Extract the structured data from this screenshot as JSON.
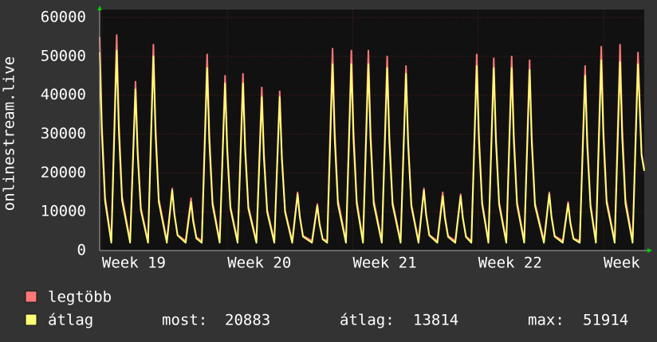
{
  "chart_data": {
    "type": "line",
    "ylabel": "onlinestream.live",
    "x": [
      0,
      0.12,
      0.3,
      0.65,
      0.95,
      1.07,
      1.25,
      1.7,
      2.0,
      2.12,
      2.3,
      2.7,
      3.0,
      3.12,
      3.3,
      3.75,
      4.05,
      4.17,
      4.35,
      4.8,
      5.1,
      5.22,
      5.4,
      5.7,
      6.0,
      6.12,
      6.3,
      6.7,
      7.0,
      7.12,
      7.3,
      7.7,
      8.0,
      8.12,
      8.3,
      8.75,
      9.05,
      9.17,
      9.35,
      9.75,
      10.05,
      10.17,
      10.35,
      10.75,
      11.05,
      11.17,
      11.35,
      11.85,
      12.15,
      12.27,
      12.45,
      12.7,
      13.0,
      13.12,
      13.3,
      13.75,
      14.05,
      14.17,
      14.35,
      14.7,
      15.0,
      15.12,
      15.3,
      15.75,
      16.05,
      16.17,
      16.35,
      16.8,
      17.1,
      17.22,
      17.4,
      17.8,
      18.1,
      18.22,
      18.4,
      18.85,
      19.15,
      19.27,
      19.45,
      19.85,
      20.15,
      20.27,
      20.45,
      20.75,
      21.05,
      21.17,
      21.35,
      21.7,
      22.0,
      22.12,
      22.3,
      22.7,
      23.0,
      23.12,
      23.3,
      23.7,
      24.0,
      24.12,
      24.3,
      24.8,
      25.1,
      25.22,
      25.4,
      25.85,
      26.15,
      26.27,
      26.45,
      26.8,
      27.1,
      27.22,
      27.4,
      27.7,
      28.0,
      28.12,
      28.3,
      28.75,
      29.05,
      29.17,
      29.35,
      29.75,
      30.05,
      30.25,
      30.4
    ],
    "series": [
      {
        "name": "legtöbb",
        "color": "#ff7777",
        "values": [
          55000,
          33000,
          13800,
          2500,
          55500,
          33300,
          13900,
          2500,
          43500,
          26100,
          10900,
          2500,
          53000,
          31800,
          13300,
          2500,
          16000,
          9600,
          4000,
          2500,
          13500,
          8100,
          3400,
          2500,
          50500,
          30300,
          12600,
          2500,
          45000,
          27000,
          11300,
          2500,
          45500,
          27300,
          11400,
          2500,
          42000,
          25200,
          10500,
          2500,
          41000,
          24600,
          10300,
          2500,
          15000,
          9000,
          3800,
          2500,
          12000,
          7200,
          3000,
          2500,
          52000,
          31200,
          13000,
          2500,
          51500,
          30900,
          12900,
          2500,
          51500,
          30900,
          12900,
          2500,
          50000,
          30000,
          12500,
          2500,
          47500,
          28500,
          11900,
          2500,
          16000,
          9600,
          4000,
          2500,
          15000,
          9000,
          3800,
          2500,
          14500,
          8700,
          3600,
          2500,
          50500,
          30300,
          12600,
          2500,
          49500,
          29700,
          12400,
          2500,
          50000,
          30000,
          12500,
          2500,
          49000,
          29400,
          12300,
          2500,
          15000,
          9000,
          3800,
          2500,
          12500,
          7500,
          3100,
          2500,
          47500,
          28500,
          11900,
          2500,
          52500,
          31500,
          13100,
          2500,
          53000,
          31800,
          13300,
          2500,
          51000,
          25000,
          21000
        ]
      },
      {
        "name": "átlag",
        "color": "#ffff77",
        "values": [
          51000,
          30600,
          12800,
          2000,
          51500,
          30900,
          12900,
          2000,
          41500,
          24900,
          10400,
          2000,
          50000,
          30000,
          12500,
          2000,
          15500,
          9300,
          3900,
          2000,
          12500,
          7500,
          3100,
          2000,
          47000,
          28200,
          11800,
          2000,
          43000,
          25800,
          10800,
          2000,
          43000,
          25800,
          10800,
          2000,
          39500,
          23700,
          9900,
          2000,
          39500,
          23700,
          9900,
          2000,
          14500,
          8700,
          3600,
          2000,
          11500,
          6900,
          2900,
          2000,
          48000,
          28800,
          12000,
          2000,
          48000,
          28800,
          12000,
          2000,
          48000,
          28800,
          12000,
          2000,
          47000,
          28200,
          11800,
          2000,
          45500,
          27300,
          11400,
          2000,
          15500,
          9300,
          3900,
          2000,
          14000,
          8400,
          3500,
          2000,
          14000,
          8400,
          3500,
          2000,
          47500,
          28500,
          11900,
          2000,
          47000,
          28200,
          11800,
          2000,
          47000,
          28200,
          11800,
          2000,
          46500,
          27900,
          11600,
          2000,
          14500,
          8700,
          3600,
          2000,
          12000,
          7200,
          3000,
          2000,
          45000,
          27000,
          11300,
          2000,
          49000,
          29400,
          12300,
          2000,
          48500,
          29100,
          12100,
          2000,
          48000,
          24500,
          20500
        ]
      }
    ],
    "xlim": [
      0,
      30.4
    ],
    "xticks": [
      {
        "value": 0.13,
        "label": "Week 19"
      },
      {
        "value": 7.13,
        "label": "Week 20"
      },
      {
        "value": 14.13,
        "label": "Week 21"
      },
      {
        "value": 21.13,
        "label": "Week 22"
      },
      {
        "value": 28.13,
        "label": "Week"
      }
    ],
    "ylim": [
      0,
      60000
    ],
    "yticks": [
      0,
      10000,
      20000,
      30000,
      40000,
      50000,
      60000
    ],
    "grid": true,
    "stats": [
      {
        "label": "most:",
        "value": 20883
      },
      {
        "label": "átlag:",
        "value": 13814
      },
      {
        "label": "max:",
        "value": 51914
      }
    ]
  }
}
